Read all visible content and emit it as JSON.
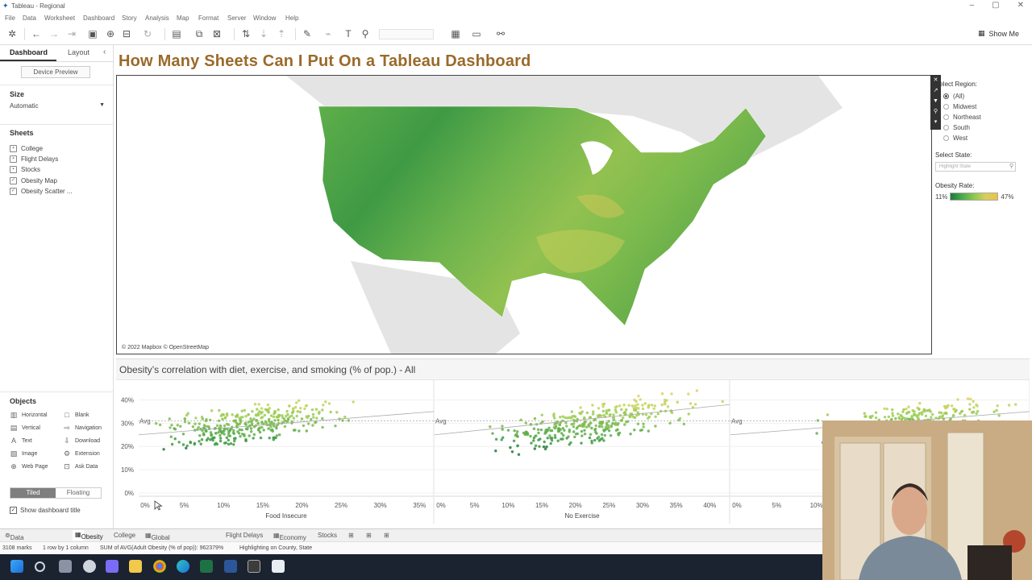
{
  "window": {
    "title": "Tableau - Regional",
    "controls": [
      "–",
      "▢",
      "✕"
    ]
  },
  "menu": [
    "File",
    "Data",
    "Worksheet",
    "Dashboard",
    "Story",
    "Analysis",
    "Map",
    "Format",
    "Server",
    "Window",
    "Help"
  ],
  "toolbar": {
    "show_me": "Show Me"
  },
  "left_panel": {
    "tabs": {
      "dashboard": "Dashboard",
      "layout": "Layout"
    },
    "device_preview": "Device Preview",
    "size": {
      "label": "Size",
      "value": "Automatic"
    },
    "sheets": {
      "label": "Sheets",
      "items": [
        "College",
        "Flight Delays",
        "Stocks",
        "Obesity Map",
        "Obesity Scatter ..."
      ]
    },
    "objects": {
      "label": "Objects",
      "items": [
        "Horizontal",
        "Blank",
        "Vertical",
        "Navigation",
        "Text",
        "Download",
        "Image",
        "Extension",
        "Web Page",
        "Ask Data"
      ]
    },
    "layout_mode": {
      "tiled": "Tiled",
      "floating": "Floating"
    },
    "show_title": "Show dashboard title"
  },
  "dashboard": {
    "title": "How Many Sheets Can I Put On a Tableau Dashboard",
    "map_attribution": "© 2022 Mapbox © OpenStreetMap",
    "filters": {
      "region_label": "Select Region:",
      "regions": [
        "(All)",
        "Midwest",
        "Northeast",
        "South",
        "West"
      ],
      "state_label": "Select State:",
      "state_placeholder": "Highlight State",
      "legend_label": "Obesity Rate:",
      "legend_min": "11%",
      "legend_max": "47%"
    },
    "scatter_title": "Obesity’s correlation with diet, exercise, and smoking (% of pop.) - All",
    "avg_label": "Avg",
    "panels": [
      {
        "x_label": "Food Insecure",
        "x_ticks": [
          "0%",
          "5%",
          "10%",
          "15%",
          "20%",
          "25%",
          "30%",
          "35%"
        ]
      },
      {
        "x_label": "No Exercise",
        "x_ticks": [
          "0%",
          "5%",
          "10%",
          "15%",
          "20%",
          "25%",
          "30%",
          "35%",
          "40%"
        ]
      },
      {
        "x_label": "",
        "x_ticks": [
          "0%",
          "5%",
          "10%"
        ]
      }
    ],
    "y_ticks": [
      "40%",
      "30%",
      "20%",
      "10%",
      "0%"
    ]
  },
  "bottom_tabs": [
    "Data Source",
    "Obesity",
    "College",
    "Global Temperatures",
    "Flight Delays",
    "Economy",
    "Stocks"
  ],
  "status": {
    "marks": "3108 marks",
    "rows": "1 row by 1 column",
    "sum": "SUM of AVG(Adult Obesity (% of pop)): 962379%",
    "highlight": "Highlighting on County, State"
  }
}
